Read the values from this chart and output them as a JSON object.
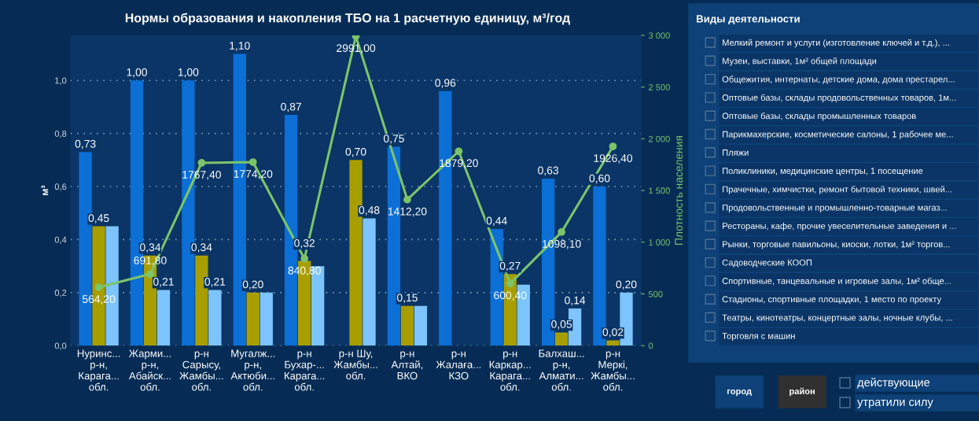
{
  "chart_data": [
    {
      "type": "bar",
      "title": "Нормы образования и накопления ТБО на 1 расчетную единицу, м³/год",
      "categories": [
        "Нуринс...\nр-н,\nКарага...\nобл.",
        "Жарми...\nр-н,\nАбайск...\nобл.",
        "р-н\nСарысу,\nЖамбы...\nобл.",
        "Мугалж...\nр-н,\nАктюби...\nобл.",
        "р-н\nБухар-...\nКарага...\nобл.",
        "р-н Шу,\nЖамбы...\nобл.",
        "р-н\nАлтай,\nВКО",
        "р-н\nЖалаға...\nКЗО",
        "р-н\nКаркар...\nКарага...\nобл.",
        "Балхаш...\nр-н,\nАлмати...\nобл.",
        "р-н\nМеркі,\nЖамбы...\nобл."
      ],
      "ylabel": "м³",
      "y2label": "Плотность населения",
      "ylim": [
        0,
        1.17
      ],
      "yticks": [
        {
          "value": 0,
          "label": "0,0"
        },
        {
          "value": 0.2,
          "label": "0,2"
        },
        {
          "value": 0.4,
          "label": "0,4"
        },
        {
          "value": 0.6,
          "label": "0,6"
        },
        {
          "value": 0.8,
          "label": "0,8"
        },
        {
          "value": 1.0,
          "label": "1,0"
        }
      ],
      "y2lim": [
        0,
        3000
      ],
      "y2ticks": [
        0,
        500,
        {
          "value": 1000,
          "label": "1 000"
        },
        {
          "value": 1500,
          "label": "1 500"
        },
        {
          "value": 2000,
          "label": "2 000"
        },
        {
          "value": 2500,
          "label": "2 500"
        },
        {
          "value": 3000,
          "label": "3 000"
        }
      ],
      "grid": "y",
      "series": [
        {
          "color": "#0b6fd6",
          "values": [
            0.73,
            1.0,
            1.0,
            1.1,
            0.87,
            null,
            0.75,
            0.96,
            0.44,
            0.63,
            0.6
          ],
          "value_labels": [
            "0,73",
            "1,00",
            "1,00",
            "1,10",
            "0,87",
            null,
            "0,75",
            "0,96",
            "0,44",
            "0,63",
            "0,60"
          ]
        },
        {
          "color": "#a89e00",
          "values": [
            0.45,
            0.34,
            0.34,
            0.2,
            0.32,
            0.7,
            0.15,
            null,
            0.27,
            0.05,
            0.02
          ],
          "value_labels": [
            "0,45",
            "0,34",
            "0,34",
            "0,20",
            "0,32",
            "0,70",
            "0,15",
            null,
            "0,27",
            "0,05",
            "0,02"
          ]
        },
        {
          "color": "#7cc4fb",
          "values": [
            0.45,
            0.21,
            0.21,
            0.2,
            0.3,
            0.48,
            0.15,
            null,
            0.23,
            0.14,
            0.2
          ],
          "value_labels": [
            null,
            "0,21",
            "0,21",
            null,
            null,
            "0,48",
            null,
            null,
            null,
            "0,14",
            "0,20"
          ]
        },
        {
          "type": "line",
          "axis": "y2",
          "color": "#7cc46a",
          "marker": "circle",
          "values": [
            564.2,
            691.8,
            1767.4,
            1774.2,
            840.8,
            2991.0,
            1412.2,
            1879.2,
            600.4,
            1098.1,
            1926.4
          ],
          "value_labels": [
            "564,20",
            "691,80",
            "1767,40",
            "1774,20",
            "840,80",
            "2991,00",
            "1412,20",
            "1879,20",
            "600,40",
            "1098,10",
            "1926,40"
          ]
        }
      ]
    },
    {
      "type": "other",
      "title": "Виды деятельности",
      "annotations": [
        "Мелкий ремонт и услуги (изготовление ключей и т.д.), ...",
        "Музеи, выставки, 1м² общей площади",
        "Общежития, интернаты, детские дома, дома престарел...",
        "Оптовые базы, склады продовольственных товаров, 1м...",
        "Оптовые базы, склады промышленных товаров",
        "Парикмахерские, косметические салоны, 1 рабочее ме...",
        "Пляжи",
        "Поликлиники, медицинские центры, 1 посещение",
        "Прачечные, химчистки, ремонт бытовой техники, швей...",
        "Продовольственные и промышленно-товарные магаз...",
        "Рестораны, кафе, прочие увеселительные заведения и ...",
        "Рынки, торговые павильоны, киоски, лотки, 1м² торгов...",
        "Садоводческие КООП",
        "Спортивные, танцевальные и игровые залы, 1м² обще...",
        "Стадионы, спортивные площадки, 1 место по проекту",
        "Театры, кинотеатры, концертные залы, ночные клубы, ...",
        "Торговля с машин",
        "город",
        "район",
        "действующие",
        "утратили силу"
      ]
    }
  ]
}
